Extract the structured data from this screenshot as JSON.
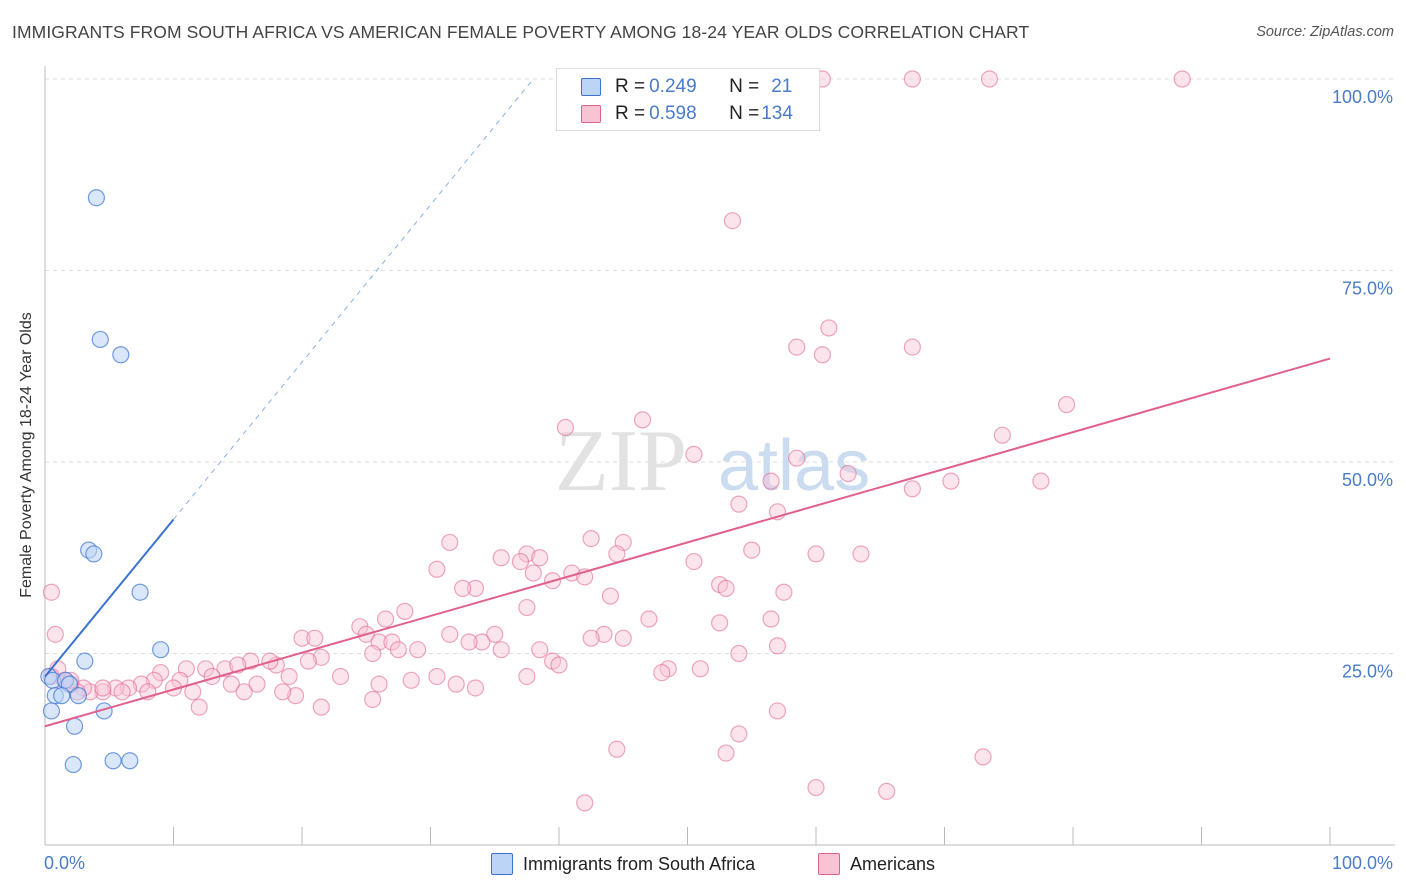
{
  "title": "IMMIGRANTS FROM SOUTH AFRICA VS AMERICAN FEMALE POVERTY AMONG 18-24 YEAR OLDS CORRELATION CHART",
  "source": "Source: ZipAtlas.com",
  "watermark": {
    "zip": "ZIP",
    "atlas": "atlas"
  },
  "colors": {
    "blue": "#3a73d0",
    "blue_fill": "#bcd4f5",
    "pink": "#e0608e",
    "pink_fill": "#f8c4d4",
    "axis_text": "#4a7cc8"
  },
  "legend": {
    "rows": [
      {
        "r_label": "R = ",
        "r_value": "0.249",
        "n_label": "N = ",
        "n_value": "21"
      },
      {
        "r_label": "R = ",
        "r_value": "0.598",
        "n_label": "N = ",
        "n_value": "134"
      }
    ],
    "series_labels": [
      "Immigrants from South Africa",
      "Americans"
    ]
  },
  "chart_data": {
    "type": "scatter",
    "title": "IMMIGRANTS FROM SOUTH AFRICA VS AMERICAN FEMALE POVERTY AMONG 18-24 YEAR OLDS CORRELATION CHART",
    "xlabel": "",
    "ylabel": "Female Poverty Among 18-24 Year Olds",
    "xlim": [
      0,
      100
    ],
    "ylim": [
      0,
      100
    ],
    "x_tick_labels": [
      "0.0%",
      "100.0%"
    ],
    "y_tick_labels": [
      "25.0%",
      "50.0%",
      "75.0%",
      "100.0%"
    ],
    "y_ticks": [
      25,
      50,
      75,
      100
    ],
    "grid": true,
    "series": [
      {
        "name": "Immigrants from South Africa",
        "color": "#3a73d0",
        "trend": {
          "x": [
            0,
            10
          ],
          "y": [
            22.0,
            42.5
          ],
          "extended_dashed_to": [
            38,
            100
          ]
        },
        "points": [
          [
            4.0,
            84.5
          ],
          [
            4.3,
            66.0
          ],
          [
            5.9,
            64.0
          ],
          [
            3.4,
            38.5
          ],
          [
            3.8,
            38.0
          ],
          [
            7.4,
            33.0
          ],
          [
            9.0,
            25.5
          ],
          [
            3.1,
            24.0
          ],
          [
            0.3,
            22.0
          ],
          [
            0.6,
            21.5
          ],
          [
            1.6,
            21.5
          ],
          [
            1.9,
            21.0
          ],
          [
            0.8,
            19.5
          ],
          [
            1.3,
            19.5
          ],
          [
            2.6,
            19.5
          ],
          [
            0.5,
            17.5
          ],
          [
            4.6,
            17.5
          ],
          [
            2.3,
            15.5
          ],
          [
            2.2,
            10.5
          ],
          [
            5.3,
            11.0
          ],
          [
            6.6,
            11.0
          ]
        ]
      },
      {
        "name": "Americans",
        "color": "#e0608e",
        "trend": {
          "x": [
            0,
            100
          ],
          "y": [
            15.5,
            63.5
          ]
        },
        "points": [
          [
            60.5,
            100
          ],
          [
            67.5,
            100
          ],
          [
            73.5,
            100
          ],
          [
            88.5,
            100
          ],
          [
            53.5,
            81.5
          ],
          [
            61.0,
            67.5
          ],
          [
            58.5,
            65.0
          ],
          [
            67.5,
            65.0
          ],
          [
            60.5,
            64.0
          ],
          [
            79.5,
            57.5
          ],
          [
            46.5,
            55.5
          ],
          [
            40.5,
            54.5
          ],
          [
            74.5,
            53.5
          ],
          [
            50.5,
            51.0
          ],
          [
            58.5,
            50.5
          ],
          [
            56.5,
            47.5
          ],
          [
            62.5,
            48.5
          ],
          [
            70.5,
            47.5
          ],
          [
            77.5,
            47.5
          ],
          [
            67.5,
            46.5
          ],
          [
            54.0,
            44.5
          ],
          [
            57.0,
            43.5
          ],
          [
            31.5,
            39.5
          ],
          [
            42.5,
            40.0
          ],
          [
            45.0,
            39.5
          ],
          [
            37.5,
            38.0
          ],
          [
            35.5,
            37.5
          ],
          [
            44.5,
            38.0
          ],
          [
            55.0,
            38.5
          ],
          [
            60.0,
            38.0
          ],
          [
            63.5,
            38.0
          ],
          [
            37.0,
            37.0
          ],
          [
            38.5,
            37.5
          ],
          [
            50.5,
            37.0
          ],
          [
            30.5,
            36.0
          ],
          [
            41.0,
            35.5
          ],
          [
            42.0,
            35.0
          ],
          [
            38.0,
            35.5
          ],
          [
            39.5,
            34.5
          ],
          [
            52.5,
            34.0
          ],
          [
            53.0,
            33.5
          ],
          [
            33.5,
            33.5
          ],
          [
            32.5,
            33.5
          ],
          [
            57.5,
            33.0
          ],
          [
            44.0,
            32.5
          ],
          [
            37.5,
            31.0
          ],
          [
            28.0,
            30.5
          ],
          [
            26.5,
            29.5
          ],
          [
            24.5,
            28.5
          ],
          [
            47.0,
            29.5
          ],
          [
            52.5,
            29.0
          ],
          [
            56.5,
            29.5
          ],
          [
            0.5,
            33.0
          ],
          [
            0.8,
            27.5
          ],
          [
            20.0,
            27.0
          ],
          [
            21.0,
            27.0
          ],
          [
            45.0,
            27.0
          ],
          [
            43.5,
            27.5
          ],
          [
            42.5,
            27.0
          ],
          [
            35.0,
            27.5
          ],
          [
            34.0,
            26.5
          ],
          [
            33.0,
            26.5
          ],
          [
            31.5,
            27.5
          ],
          [
            25.0,
            27.5
          ],
          [
            26.0,
            26.5
          ],
          [
            27.0,
            26.5
          ],
          [
            57.0,
            26.0
          ],
          [
            38.5,
            25.5
          ],
          [
            29.0,
            25.5
          ],
          [
            27.5,
            25.5
          ],
          [
            35.5,
            25.5
          ],
          [
            54.0,
            25.0
          ],
          [
            25.5,
            25.0
          ],
          [
            21.5,
            24.5
          ],
          [
            20.5,
            24.0
          ],
          [
            18.0,
            23.5
          ],
          [
            16.0,
            24.0
          ],
          [
            14.0,
            23.0
          ],
          [
            17.5,
            24.0
          ],
          [
            15.0,
            23.5
          ],
          [
            12.5,
            23.0
          ],
          [
            11.0,
            23.0
          ],
          [
            9.0,
            22.5
          ],
          [
            10.5,
            21.5
          ],
          [
            8.5,
            21.5
          ],
          [
            7.5,
            21.0
          ],
          [
            6.5,
            20.5
          ],
          [
            5.5,
            20.5
          ],
          [
            4.5,
            20.0
          ],
          [
            3.5,
            20.0
          ],
          [
            3.0,
            20.5
          ],
          [
            2.5,
            20.0
          ],
          [
            2.0,
            21.0
          ],
          [
            1.5,
            21.5
          ],
          [
            1.0,
            23.0
          ],
          [
            0.5,
            22.0
          ],
          [
            13.0,
            22.0
          ],
          [
            14.5,
            21.0
          ],
          [
            16.5,
            21.0
          ],
          [
            19.0,
            22.0
          ],
          [
            23.0,
            22.0
          ],
          [
            26.0,
            21.0
          ],
          [
            28.5,
            21.5
          ],
          [
            30.5,
            22.0
          ],
          [
            32.0,
            21.0
          ],
          [
            33.5,
            20.5
          ],
          [
            48.5,
            23.0
          ],
          [
            51.0,
            23.0
          ],
          [
            48.0,
            22.5
          ],
          [
            37.5,
            22.0
          ],
          [
            39.5,
            24.0
          ],
          [
            40.0,
            23.5
          ],
          [
            19.5,
            19.5
          ],
          [
            25.5,
            19.0
          ],
          [
            12.0,
            18.0
          ],
          [
            21.5,
            18.0
          ],
          [
            2.0,
            21.5
          ],
          [
            4.5,
            20.5
          ],
          [
            6.0,
            20.0
          ],
          [
            8.0,
            20.0
          ],
          [
            11.5,
            20.0
          ],
          [
            15.5,
            20.0
          ],
          [
            18.5,
            20.0
          ],
          [
            10.0,
            20.5
          ],
          [
            57.0,
            17.5
          ],
          [
            54.0,
            14.5
          ],
          [
            44.5,
            12.5
          ],
          [
            53.0,
            12.0
          ],
          [
            73.0,
            11.5
          ],
          [
            60.0,
            7.5
          ],
          [
            65.5,
            7.0
          ],
          [
            42.0,
            5.5
          ]
        ]
      }
    ]
  }
}
